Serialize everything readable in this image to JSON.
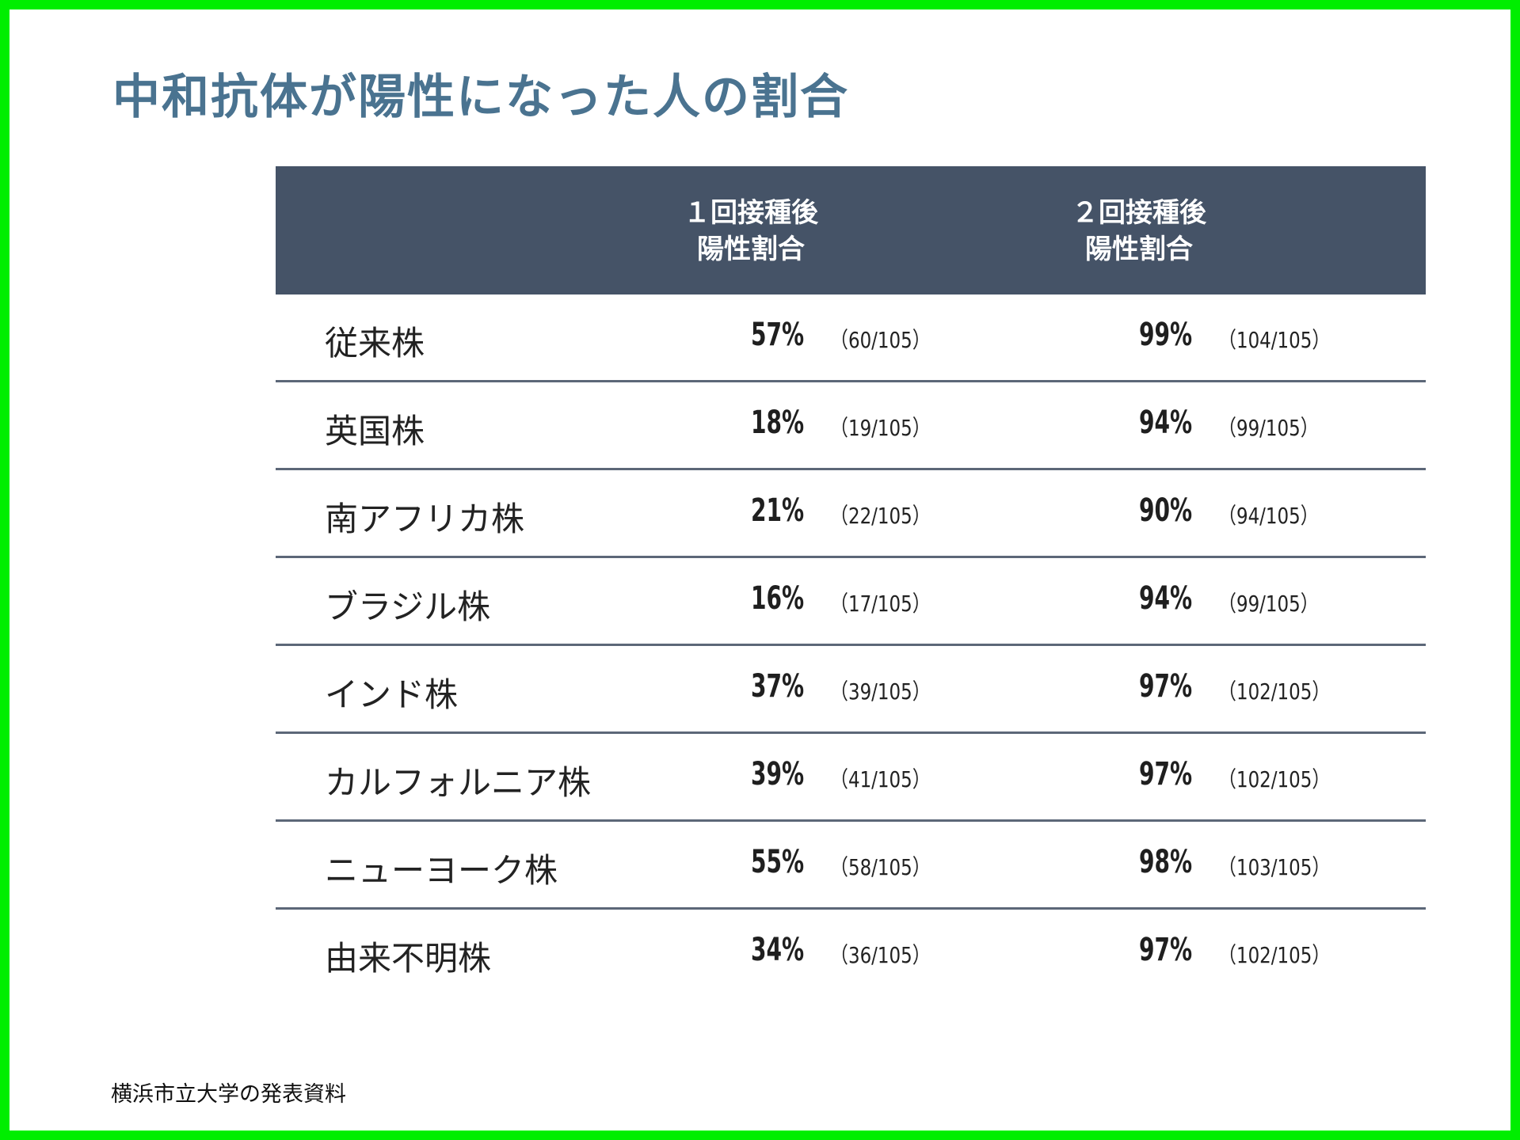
{
  "title": "中和抗体が陽性になった人の割合",
  "source": "横浜市立大学の発表資料",
  "colors": {
    "title": "#4a7390",
    "header_bg": "#455367",
    "frame": "#00ee00",
    "row_divider": "#5c6778"
  },
  "chart_data": {
    "type": "table",
    "title": "中和抗体が陽性になった人の割合",
    "columns": [
      {
        "line1": "",
        "line2": ""
      },
      {
        "line1": "１回接種後",
        "line2": "陽性割合"
      },
      {
        "line1": "２回接種後",
        "line2": "陽性割合"
      }
    ],
    "rows": [
      {
        "strain": "従来株",
        "dose1_pct": "57%",
        "dose1_frac": "（60/105）",
        "dose2_pct": "99%",
        "dose2_frac": "（104/105）"
      },
      {
        "strain": "英国株",
        "dose1_pct": "18%",
        "dose1_frac": "（19/105）",
        "dose2_pct": "94%",
        "dose2_frac": "（99/105）"
      },
      {
        "strain": "南アフリカ株",
        "dose1_pct": "21%",
        "dose1_frac": "（22/105）",
        "dose2_pct": "90%",
        "dose2_frac": "（94/105）"
      },
      {
        "strain": "ブラジル株",
        "dose1_pct": "16%",
        "dose1_frac": "（17/105）",
        "dose2_pct": "94%",
        "dose2_frac": "（99/105）"
      },
      {
        "strain": "インド株",
        "dose1_pct": "37%",
        "dose1_frac": "（39/105）",
        "dose2_pct": "97%",
        "dose2_frac": "（102/105）"
      },
      {
        "strain": "カルフォルニア株",
        "dose1_pct": "39%",
        "dose1_frac": "（41/105）",
        "dose2_pct": "97%",
        "dose2_frac": "（102/105）"
      },
      {
        "strain": "ニューヨーク株",
        "dose1_pct": "55%",
        "dose1_frac": "（58/105）",
        "dose2_pct": "98%",
        "dose2_frac": "（103/105）"
      },
      {
        "strain": "由来不明株",
        "dose1_pct": "34%",
        "dose1_frac": "（36/105）",
        "dose2_pct": "97%",
        "dose2_frac": "（102/105）"
      }
    ]
  }
}
